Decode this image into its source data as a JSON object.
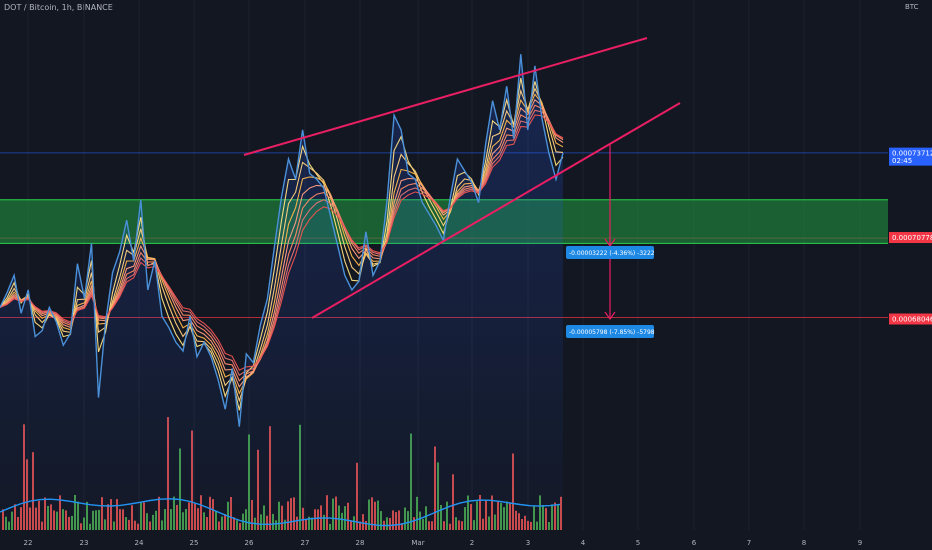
{
  "header": {
    "title": "DOT / Bitcoin, 1h, BINANCE",
    "unit": "BTC"
  },
  "colors": {
    "background": "#131722",
    "price_line": "#4a90d9",
    "trendline": "#e91e63",
    "zone_fill": "#1e7a3a",
    "zone_border": "#2bd44a",
    "vol_up": "#26a69a",
    "vol_down": "#ef5350",
    "vol_ma": "#2196f3",
    "ribbon_top": "#ffe082",
    "ribbon_bottom": "#e57373",
    "tag_blue": "#2962ff",
    "tag_red": "#f23645",
    "measure_box": "#1e88e5"
  },
  "chart_data": {
    "type": "line",
    "title": "DOT / Bitcoin, 1h, BINANCE",
    "ylabel": "BTC",
    "ylim": [
      6.05e-05,
      7.9e-05
    ],
    "y_ticks": [
      "0.00078000",
      "0.00077000",
      "0.00076000",
      "0.00075000",
      "0.00074000",
      "0.00073000",
      "0.00072000",
      "0.00071000",
      "0.00070000",
      "0.00069000",
      "0.00068000",
      "0.00067000",
      "0.00066000",
      "0.00065000",
      "0.00064000",
      "0.00063000",
      "0.00062000",
      "0.00061000"
    ],
    "x_ticks": [
      "22",
      "23",
      "24",
      "25",
      "26",
      "27",
      "28",
      "Mar",
      "2",
      "3",
      "4",
      "5",
      "6",
      "7",
      "8",
      "9"
    ],
    "series": [
      {
        "name": "",
        "points": [
          [
            0.0,
            6.84e-05
          ],
          [
            1.0,
            6.89e-05
          ],
          [
            2.0,
            6.95e-05
          ],
          [
            3.0,
            6.82e-05
          ],
          [
            4.0,
            6.9e-05
          ],
          [
            5.0,
            6.74e-05
          ],
          [
            6.0,
            6.76e-05
          ],
          [
            7.0,
            6.84e-05
          ],
          [
            8.0,
            6.79e-05
          ],
          [
            9.0,
            6.71e-05
          ],
          [
            10.0,
            6.75e-05
          ],
          [
            11.0,
            6.99e-05
          ],
          [
            12.0,
            6.87e-05
          ],
          [
            13.0,
            7.06e-05
          ],
          [
            14.0,
            6.53e-05
          ],
          [
            15.0,
            6.79e-05
          ],
          [
            16.0,
            6.96e-05
          ],
          [
            17.0,
            7.03e-05
          ],
          [
            18.0,
            7.14e-05
          ],
          [
            19.0,
            7e-05
          ],
          [
            20.0,
            7.21e-05
          ],
          [
            21.0,
            6.9e-05
          ],
          [
            22.0,
            7e-05
          ],
          [
            23.0,
            6.81e-05
          ],
          [
            24.0,
            6.77e-05
          ],
          [
            25.0,
            6.72e-05
          ],
          [
            26.0,
            6.69e-05
          ],
          [
            27.0,
            6.81e-05
          ],
          [
            28.0,
            6.67e-05
          ],
          [
            29.0,
            6.72e-05
          ],
          [
            30.0,
            6.67e-05
          ],
          [
            31.0,
            6.59e-05
          ],
          [
            32.0,
            6.49e-05
          ],
          [
            33.0,
            6.63e-05
          ],
          [
            34.0,
            6.43e-05
          ],
          [
            35.0,
            6.68e-05
          ],
          [
            36.0,
            6.65e-05
          ],
          [
            37.0,
            6.78e-05
          ],
          [
            38.0,
            6.87e-05
          ],
          [
            39.0,
            7.05e-05
          ],
          [
            40.0,
            7.22e-05
          ],
          [
            41.0,
            7.35e-05
          ],
          [
            42.0,
            7.28e-05
          ],
          [
            43.0,
            7.45e-05
          ],
          [
            44.0,
            7.3e-05
          ],
          [
            45.0,
            7.28e-05
          ],
          [
            46.0,
            7.25e-05
          ],
          [
            47.0,
            7.15e-05
          ],
          [
            48.0,
            7.05e-05
          ],
          [
            49.0,
            6.95e-05
          ],
          [
            50.0,
            6.9e-05
          ],
          [
            51.0,
            6.93e-05
          ],
          [
            52.0,
            7.1e-05
          ],
          [
            53.0,
            6.95e-05
          ],
          [
            54.0,
            7e-05
          ],
          [
            55.0,
            7.21e-05
          ],
          [
            56.0,
            7.5e-05
          ],
          [
            57.0,
            7.45e-05
          ],
          [
            58.0,
            7.3e-05
          ],
          [
            59.0,
            7.28e-05
          ],
          [
            60.0,
            7.2e-05
          ],
          [
            61.0,
            7.16e-05
          ],
          [
            62.0,
            7.12e-05
          ],
          [
            63.0,
            7.07e-05
          ],
          [
            64.0,
            7.22e-05
          ],
          [
            65.0,
            7.35e-05
          ],
          [
            66.0,
            7.31e-05
          ],
          [
            67.0,
            7.27e-05
          ],
          [
            68.0,
            7.2e-05
          ],
          [
            69.0,
            7.4e-05
          ],
          [
            70.0,
            7.55e-05
          ],
          [
            71.0,
            7.45e-05
          ],
          [
            72.0,
            7.6e-05
          ],
          [
            73.0,
            7.42e-05
          ],
          [
            74.0,
            7.71e-05
          ],
          [
            75.0,
            7.45e-05
          ],
          [
            76.0,
            7.67e-05
          ],
          [
            77.0,
            7.49e-05
          ],
          [
            78.0,
            7.37e-05
          ],
          [
            79.0,
            7.28e-05
          ],
          [
            80.0,
            7.37e-05
          ]
        ]
      }
    ]
  },
  "price_tags": [
    {
      "label": "0.00073712",
      "sublabel": "02:45",
      "value": 7.37e-05,
      "color": "tag_blue"
    },
    {
      "label": "0.00070778",
      "value": 7.08e-05,
      "color": "tag_red"
    },
    {
      "label": "0.00068046",
      "value": 6.8e-05,
      "color": "tag_red"
    }
  ],
  "measurements": [
    {
      "label": "-0.00003222 (-4.36%) -3222"
    },
    {
      "label": "-0.00005798 (-7.85%) -5798"
    }
  ]
}
